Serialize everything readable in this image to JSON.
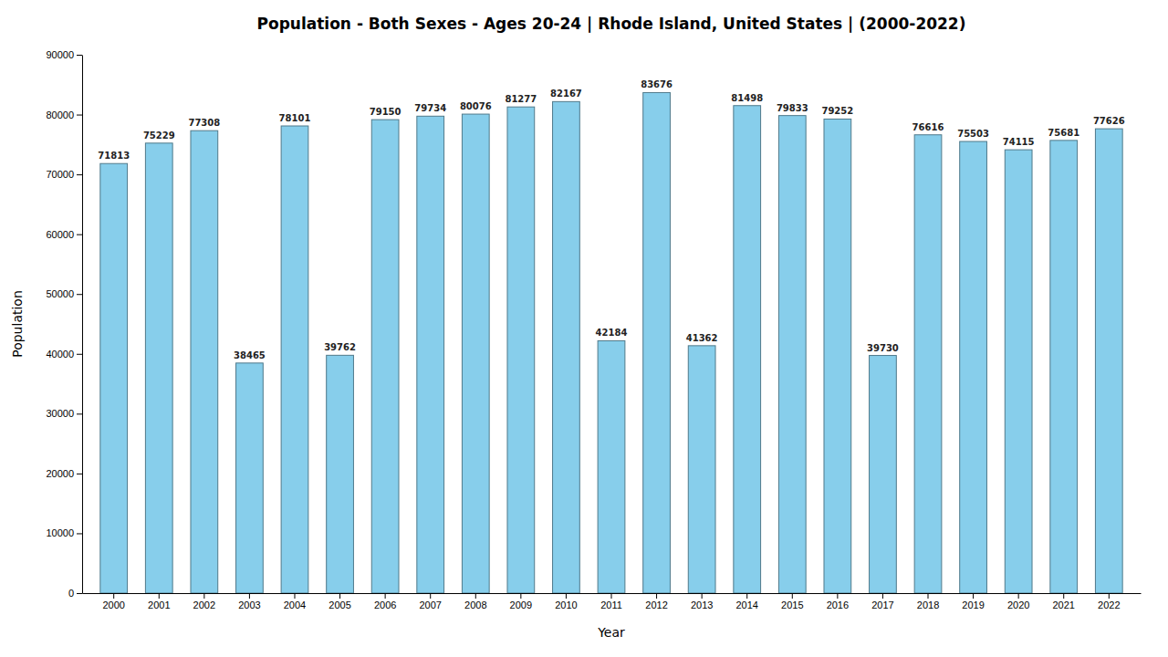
{
  "chart_data": {
    "type": "bar",
    "title": "Population - Both Sexes - Ages 20-24 | Rhode Island, United States |  (2000-2022)",
    "x_label": "Year",
    "y_label": "Population",
    "categories": [
      "2000",
      "2001",
      "2002",
      "2003",
      "2004",
      "2005",
      "2006",
      "2007",
      "2008",
      "2009",
      "2010",
      "2011",
      "2012",
      "2013",
      "2014",
      "2015",
      "2016",
      "2017",
      "2018",
      "2019",
      "2020",
      "2021",
      "2022"
    ],
    "values": [
      71813,
      75229,
      77308,
      38465,
      78101,
      39762,
      79150,
      79734,
      80076,
      81277,
      82167,
      42184,
      83676,
      41362,
      81498,
      79833,
      79252,
      39730,
      76616,
      75503,
      74115,
      75681,
      77626
    ],
    "color": "#87ceeb",
    "ylim": [
      0,
      90000
    ],
    "yticks": [
      0,
      10000,
      20000,
      30000,
      40000,
      50000,
      60000,
      70000,
      80000,
      90000
    ],
    "grid": false,
    "data_labels": true
  }
}
